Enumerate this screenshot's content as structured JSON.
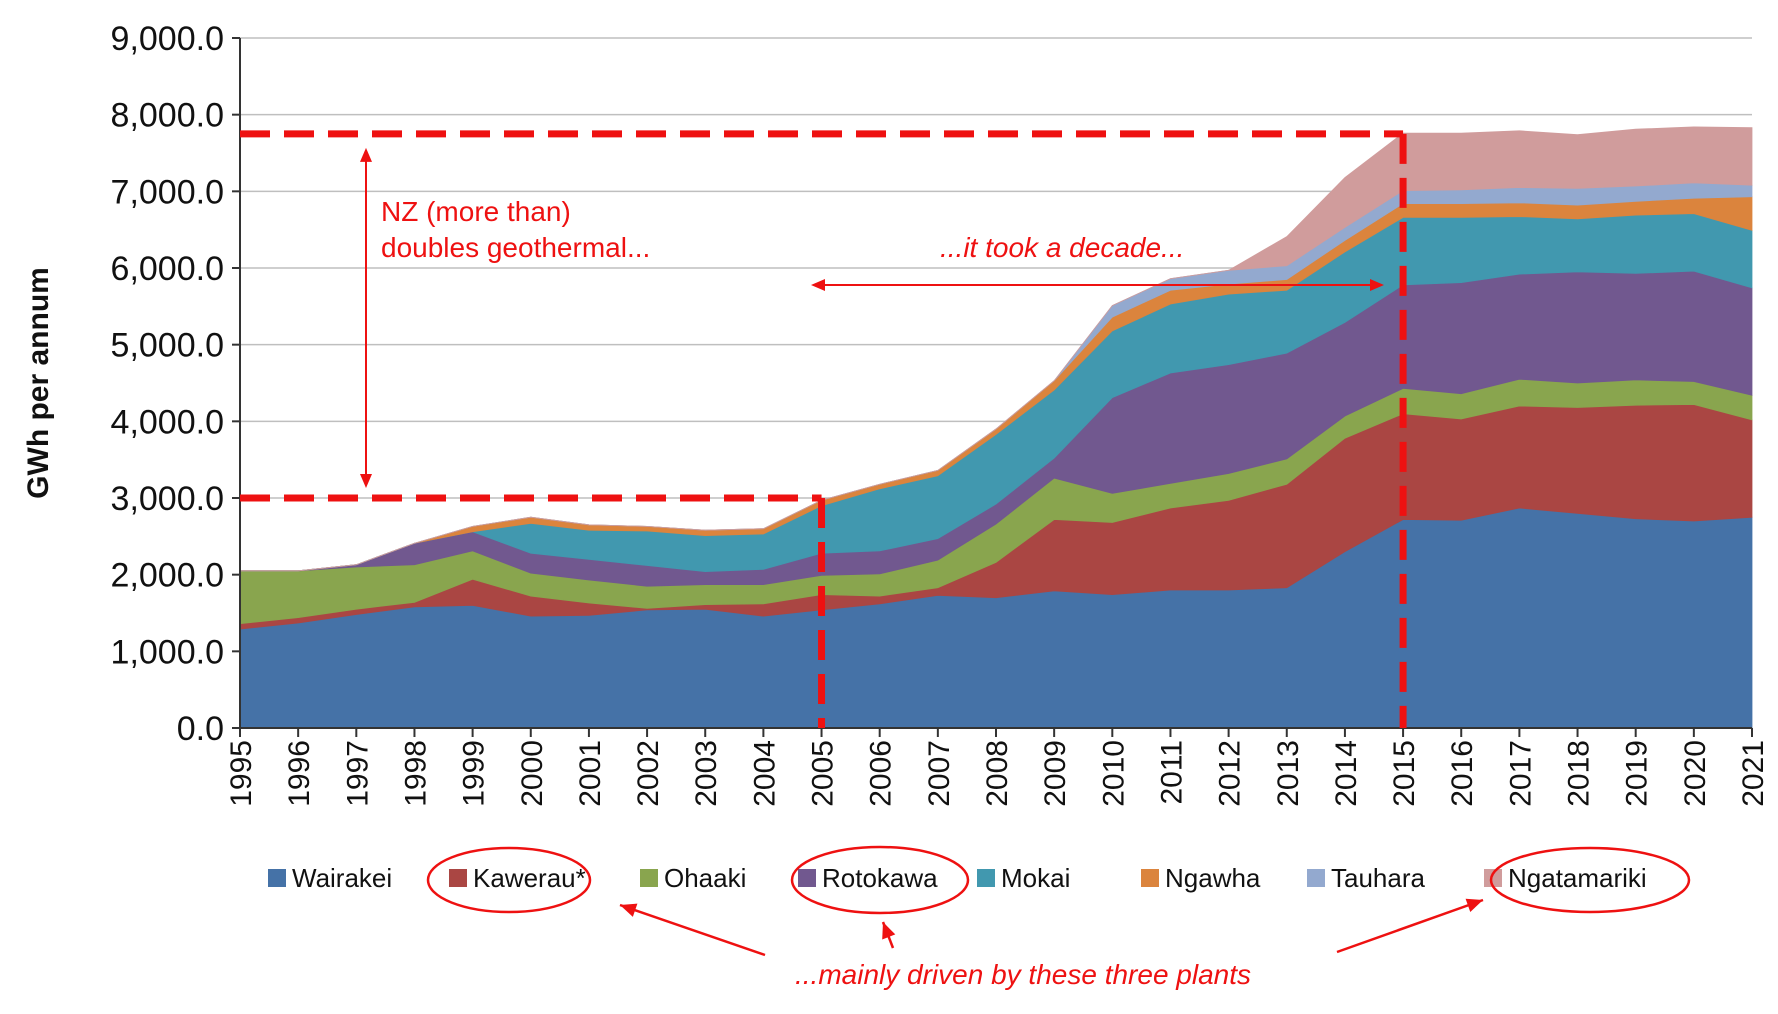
{
  "chart_data": {
    "type": "area",
    "stacked": true,
    "ylabel": "GWh per annum",
    "ylim": [
      0,
      9000
    ],
    "ytick_step": 1000,
    "yticks": [
      "0.0",
      "1,000.0",
      "2,000.0",
      "3,000.0",
      "4,000.0",
      "5,000.0",
      "6,000.0",
      "7,000.0",
      "8,000.0",
      "9,000.0"
    ],
    "grid": true,
    "legend_position": "bottom",
    "x": [
      1995,
      1996,
      1997,
      1998,
      1999,
      2000,
      2001,
      2002,
      2003,
      2004,
      2005,
      2006,
      2007,
      2008,
      2009,
      2010,
      2011,
      2012,
      2013,
      2014,
      2015,
      2016,
      2017,
      2018,
      2019,
      2020,
      2021
    ],
    "x_labels": [
      "1995",
      "1996",
      "1997",
      "1998",
      "1999",
      "2000",
      "2001",
      "2002",
      "2003",
      "2004",
      "2005",
      "2006",
      "2007",
      "2008",
      "2009",
      "2010",
      "2011",
      "2012",
      "2013",
      "2014",
      "2015",
      "2016",
      "2017",
      "2018",
      "2019",
      "2020",
      "2021"
    ],
    "series": [
      {
        "name": "Wairakei",
        "color": "#4572a7",
        "values": [
          1290,
          1370,
          1480,
          1580,
          1600,
          1460,
          1470,
          1540,
          1550,
          1460,
          1540,
          1620,
          1730,
          1700,
          1790,
          1740,
          1800,
          1800,
          1830,
          2300,
          2720,
          2710,
          2870,
          2800,
          2730,
          2700,
          2750
        ]
      },
      {
        "name": "Kawerau*",
        "color": "#aa4643",
        "values": [
          70,
          70,
          70,
          60,
          340,
          260,
          160,
          20,
          60,
          160,
          200,
          100,
          100,
          460,
          930,
          940,
          1070,
          1170,
          1350,
          1480,
          1380,
          1320,
          1330,
          1380,
          1480,
          1520,
          1270
        ]
      },
      {
        "name": "Ohaaki",
        "color": "#89a54e",
        "values": [
          690,
          610,
          550,
          490,
          370,
          300,
          300,
          290,
          260,
          250,
          250,
          290,
          360,
          500,
          540,
          380,
          320,
          350,
          330,
          290,
          330,
          330,
          350,
          320,
          330,
          300,
          320
        ]
      },
      {
        "name": "Rotokawa",
        "color": "#71588f",
        "values": [
          0,
          0,
          30,
          280,
          250,
          260,
          270,
          270,
          170,
          200,
          290,
          300,
          280,
          260,
          260,
          1250,
          1440,
          1420,
          1380,
          1220,
          1350,
          1450,
          1370,
          1450,
          1390,
          1440,
          1400
        ]
      },
      {
        "name": "Mokai",
        "color": "#4198af",
        "values": [
          0,
          0,
          0,
          0,
          0,
          390,
          380,
          450,
          470,
          460,
          620,
          810,
          820,
          910,
          890,
          870,
          900,
          920,
          820,
          920,
          880,
          850,
          750,
          690,
          760,
          750,
          750
        ]
      },
      {
        "name": "Ngawha",
        "color": "#db843d",
        "values": [
          0,
          0,
          0,
          0,
          70,
          80,
          70,
          60,
          70,
          70,
          70,
          60,
          70,
          70,
          120,
          180,
          180,
          130,
          140,
          150,
          180,
          180,
          180,
          180,
          180,
          200,
          440
        ]
      },
      {
        "name": "Tauhara",
        "color": "#93a9cf",
        "values": [
          0,
          0,
          0,
          0,
          0,
          0,
          0,
          0,
          0,
          0,
          0,
          0,
          0,
          0,
          0,
          150,
          150,
          180,
          180,
          170,
          170,
          180,
          200,
          220,
          200,
          200,
          150
        ]
      },
      {
        "name": "Ngatamariki",
        "color": "#d09c9c",
        "values": [
          0,
          0,
          0,
          0,
          0,
          0,
          0,
          0,
          0,
          0,
          0,
          0,
          0,
          0,
          0,
          0,
          0,
          0,
          380,
          650,
          750,
          740,
          740,
          700,
          740,
          730,
          750
        ]
      }
    ],
    "annotations": {
      "left_note_line1": "NZ (more than)",
      "left_note_line2": "doubles geothermal...",
      "decade_note": "...it took a decade...",
      "bottom_note": "...mainly driven by these three plants",
      "ref_high_value": 7750,
      "ref_low_value": 3000,
      "ref_start_year": 2005,
      "ref_end_year": 2015,
      "circled_series": [
        "Kawerau*",
        "Rotokawa",
        "Ngatamariki"
      ],
      "accent_color": "#ee1111"
    }
  }
}
